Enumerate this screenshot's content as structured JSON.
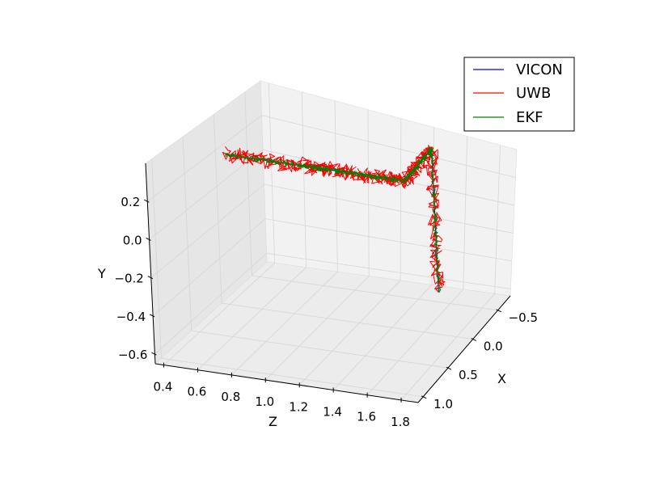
{
  "chart_data": {
    "type": "line",
    "projection": "3d",
    "title": "",
    "axes": {
      "x": {
        "label": "X",
        "ticks": [
          "−0.5",
          "0.0",
          "0.5",
          "1.0"
        ]
      },
      "y": {
        "label": "Y",
        "ticks": [
          "−0.6",
          "−0.4",
          "−0.2",
          "0.0",
          "0.2"
        ]
      },
      "z": {
        "label": "Z",
        "ticks": [
          "0.4",
          "0.6",
          "0.8",
          "1.0",
          "1.2",
          "1.4",
          "1.6",
          "1.8"
        ]
      }
    },
    "grid": true,
    "legend": {
      "position": "top-right",
      "entries": [
        {
          "label": "VICON",
          "color": "#0000ff"
        },
        {
          "label": "UWB",
          "color": "#ff0000"
        },
        {
          "label": "EKF",
          "color": "#008000"
        }
      ]
    },
    "series": [
      {
        "name": "VICON",
        "color": "#0000ff",
        "points": [
          {
            "x": 0.2,
            "y": 0.2,
            "z": 0.55
          },
          {
            "x": 0.2,
            "y": 0.2,
            "z": 1.3
          },
          {
            "x": 0.2,
            "y": 0.2,
            "z": 1.6
          },
          {
            "x": -0.35,
            "y": 0.2,
            "z": 1.6
          },
          {
            "x": -0.35,
            "y": -0.55,
            "z": 1.6
          }
        ]
      },
      {
        "name": "UWB",
        "color": "#ff0000",
        "points": [
          {
            "x": 0.2,
            "y": 0.2,
            "z": 0.55
          },
          {
            "x": 0.2,
            "y": 0.2,
            "z": 1.0
          },
          {
            "x": 0.2,
            "y": 0.2,
            "z": 1.3
          },
          {
            "x": 0.2,
            "y": 0.2,
            "z": 1.6
          },
          {
            "x": -0.35,
            "y": 0.2,
            "z": 1.6
          },
          {
            "x": -0.35,
            "y": -0.55,
            "z": 1.6
          }
        ]
      },
      {
        "name": "EKF",
        "color": "#008000",
        "points": [
          {
            "x": 0.2,
            "y": 0.2,
            "z": 0.55
          },
          {
            "x": 0.2,
            "y": 0.2,
            "z": 1.0
          },
          {
            "x": 0.2,
            "y": 0.2,
            "z": 1.3
          },
          {
            "x": 0.2,
            "y": 0.2,
            "z": 1.6
          },
          {
            "x": -0.35,
            "y": 0.2,
            "z": 1.6
          },
          {
            "x": -0.35,
            "y": -0.55,
            "z": 1.6
          }
        ]
      }
    ]
  }
}
